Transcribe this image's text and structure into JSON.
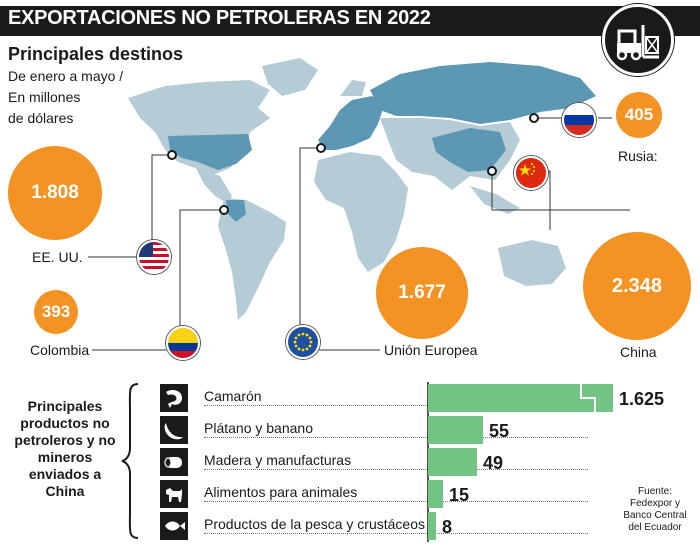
{
  "title": "EXPORTACIONES NO PETROLERAS EN 2022",
  "icon": "forklift-icon",
  "subtitle": "Principales destinos",
  "subnote_lines": [
    "De enero a mayo /",
    "En millones",
    "de dólares"
  ],
  "colors": {
    "bubble": "#f39324",
    "map_land": "#b5cbd6",
    "map_highlight": "#5c97b3",
    "bar": "#72c485",
    "dark": "#1a1a1a"
  },
  "chart_data": [
    {
      "type": "bubble",
      "title": "Principales destinos",
      "unit": "millones de dólares",
      "categories": [
        "EE. UU.",
        "Colombia",
        "Unión Europea",
        "China",
        "Rusia:"
      ],
      "values": [
        "1.808",
        "393",
        "1.677",
        "2.348",
        "405"
      ]
    },
    {
      "type": "bar",
      "title": "Principales productos no petroleros y no mineros enviados a China",
      "categories": [
        "Camarón",
        "Plátano y banano",
        "Madera y manufacturas",
        "Alimentos para animales",
        "Productos de la pesca y crustáceos"
      ],
      "values": [
        1625,
        55,
        49,
        15,
        8
      ],
      "value_labels": [
        "1.625",
        "55",
        "49",
        "15",
        "8"
      ],
      "axis_break": true
    }
  ],
  "destinations": [
    {
      "name": "EE. UU.",
      "value": "1.808",
      "flag": "usa-flag"
    },
    {
      "name": "Colombia",
      "value": "393",
      "flag": "colombia-flag"
    },
    {
      "name": "Unión Europea",
      "value": "1.677",
      "flag": "eu-flag"
    },
    {
      "name": "China",
      "value": "2.348",
      "flag": "china-flag"
    },
    {
      "name": "Rusia:",
      "value": "405",
      "flag": "russia-flag"
    }
  ],
  "products_heading": [
    "Principales",
    "productos no",
    "petroleros y no",
    "mineros",
    "enviados a",
    "China"
  ],
  "products": [
    {
      "label": "Camarón",
      "value": "1.625",
      "icon": "shrimp-icon"
    },
    {
      "label": "Plátano y banano",
      "value": "55",
      "icon": "banana-icon"
    },
    {
      "label": "Madera y manufacturas",
      "value": "49",
      "icon": "wood-log-icon"
    },
    {
      "label": "Alimentos para animales",
      "value": "15",
      "icon": "dog-icon"
    },
    {
      "label": "Productos de la pesca y crustáceos",
      "value": "8",
      "icon": "fish-icon"
    }
  ],
  "source_lines": [
    "Fuente:",
    "Fedexpor y",
    "Banco Central",
    "del Ecuador"
  ]
}
